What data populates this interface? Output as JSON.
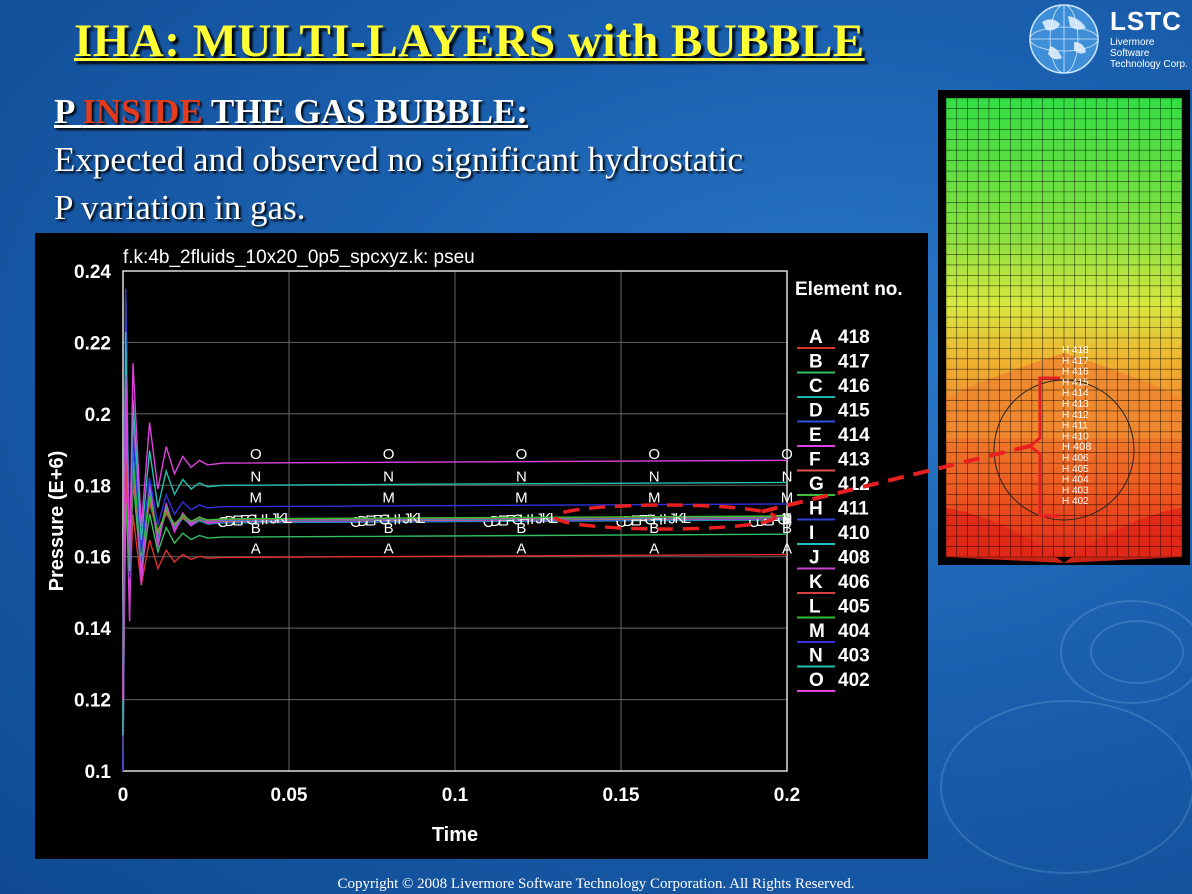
{
  "slide": {
    "title": "IHA: MULTI-LAYERS with BUBBLE",
    "subtitle_prefix": "P ",
    "subtitle_highlight": "INSIDE",
    "subtitle_suffix": " THE GAS BUBBLE:",
    "body_line1": "Expected and observed no significant hydrostatic",
    "body_line2": "P variation in gas.",
    "copyright": "Copyright © 2008 Livermore Software Technology Corporation.  All Rights Reserved."
  },
  "logo": {
    "name": "LSTC",
    "sub1": "Livermore Software",
    "sub2": "Technology Corp.",
    "icon": "globe-icon"
  },
  "chart_data": {
    "type": "line",
    "title": "f.k:4b_2fluids_10x20_0p5_spcxyz.k: pseu",
    "xlabel": "Time",
    "ylabel": "Pressure (E+6)",
    "xlim": [
      0,
      0.2
    ],
    "ylim": [
      0.1,
      0.24
    ],
    "xticks": [
      0,
      0.05,
      0.1,
      0.15,
      0.2
    ],
    "xtick_labels": [
      "0",
      "0.05",
      "0.1",
      "0.15",
      "0.2"
    ],
    "yticks": [
      0.1,
      0.12,
      0.14,
      0.16,
      0.18,
      0.2,
      0.22,
      0.24
    ],
    "ytick_labels": [
      "0.1",
      "0.12",
      "0.14",
      "0.16",
      "0.18",
      "0.2",
      "0.22",
      "0.24"
    ],
    "grid": true,
    "legend_title": "Element no.",
    "legend_position": "right",
    "background": "#000000",
    "series": [
      {
        "letter": "A",
        "name": "418",
        "color": "#e03030",
        "value": 0.1598
      },
      {
        "letter": "B",
        "name": "417",
        "color": "#30c060",
        "value": 0.1655
      },
      {
        "letter": "C",
        "name": "416",
        "color": "#20b0b0",
        "value": 0.1695
      },
      {
        "letter": "D",
        "name": "415",
        "color": "#3050e0",
        "value": 0.1697
      },
      {
        "letter": "E",
        "name": "414",
        "color": "#e040e0",
        "value": 0.1699
      },
      {
        "letter": "F",
        "name": "413",
        "color": "#e05050",
        "value": 0.17
      },
      {
        "letter": "G",
        "name": "412",
        "color": "#40c040",
        "value": 0.1701
      },
      {
        "letter": "H",
        "name": "411",
        "color": "#3040d0",
        "value": 0.1702
      },
      {
        "letter": "I",
        "name": "410",
        "color": "#20c0c0",
        "value": 0.1703
      },
      {
        "letter": "J",
        "name": "408",
        "color": "#d040d0",
        "value": 0.1704
      },
      {
        "letter": "K",
        "name": "406",
        "color": "#d84040",
        "value": 0.1705
      },
      {
        "letter": "L",
        "name": "405",
        "color": "#30c030",
        "value": 0.1706
      },
      {
        "letter": "M",
        "name": "404",
        "color": "#3030e0",
        "value": 0.174
      },
      {
        "letter": "N",
        "name": "403",
        "color": "#20c0b0",
        "value": 0.18
      },
      {
        "letter": "O",
        "name": "402",
        "color": "#e040e0",
        "value": 0.1862
      }
    ],
    "marker_x": [
      0.04,
      0.08,
      0.12,
      0.16,
      0.2
    ]
  },
  "mesh": {
    "cell_labels": [
      "418",
      "417",
      "416",
      "415",
      "414",
      "413",
      "412",
      "411",
      "410",
      "408",
      "406",
      "405",
      "404",
      "403",
      "402"
    ],
    "cell_prefix": "H"
  }
}
